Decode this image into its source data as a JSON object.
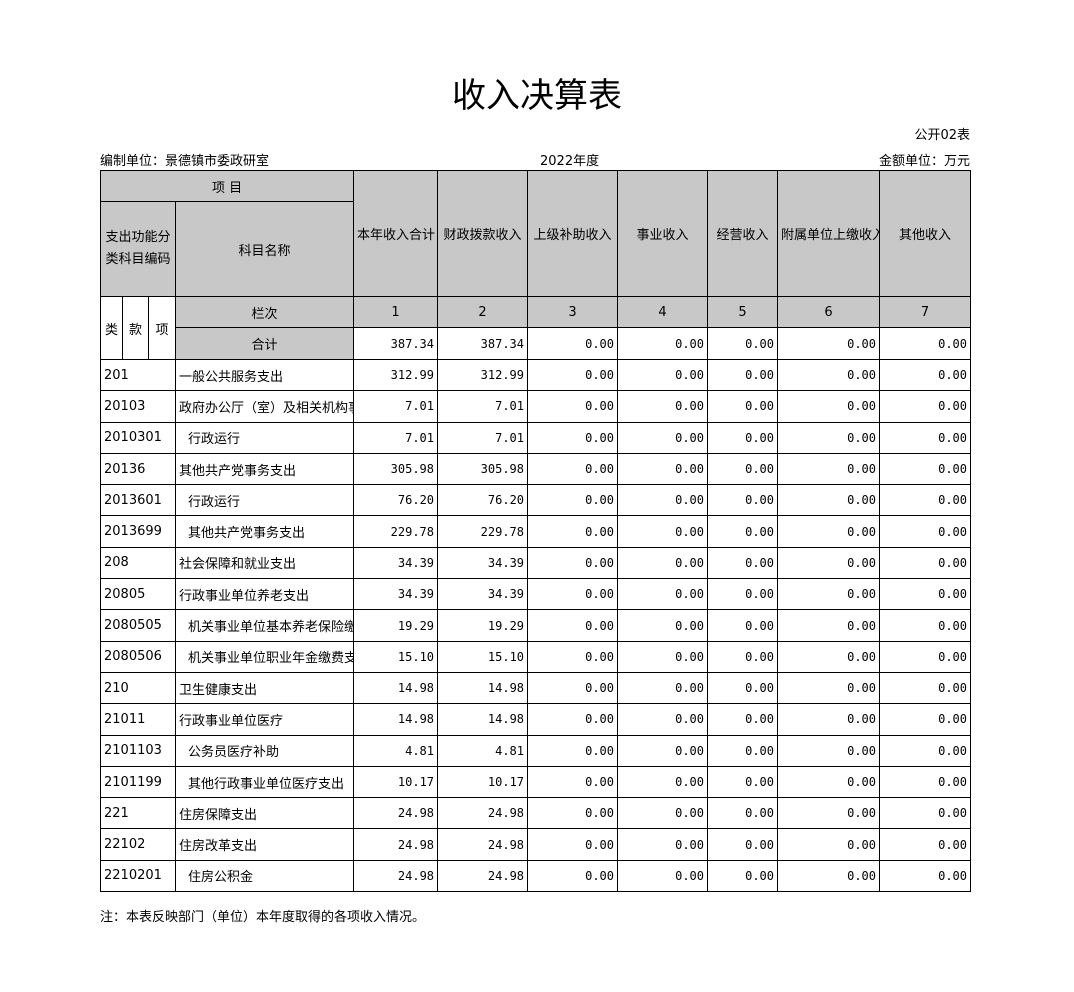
{
  "title": "收入决算表",
  "form_no": "公开02表",
  "unit": "编制单位：景德镇市委政研室",
  "year": "2022年度",
  "currency": "金额单位：万元",
  "table": {
    "header": {
      "item": "项 目",
      "code": "支出功能分类科目编码",
      "name": "科目名称",
      "columns": [
        "本年收入合计",
        "财政拨款收入",
        "上级补助收入",
        "事业收入",
        "经营收入",
        "附属单位上缴收入",
        "其他收入"
      ],
      "levels": [
        "类",
        "款",
        "项"
      ],
      "col_index_label": "栏次",
      "col_index": [
        "1",
        "2",
        "3",
        "4",
        "5",
        "6",
        "7"
      ]
    },
    "total": {
      "label": "合计",
      "values": [
        "387.34",
        "387.34",
        "0.00",
        "0.00",
        "0.00",
        "0.00",
        "0.00"
      ]
    },
    "rows": [
      [
        "201",
        "一般公共服务支出",
        "312.99",
        "312.99",
        "0.00",
        "0.00",
        "0.00",
        "0.00",
        "0.00"
      ],
      [
        "20103",
        "政府办公厅（室）及相关机构事务",
        "7.01",
        "7.01",
        "0.00",
        "0.00",
        "0.00",
        "0.00",
        "0.00"
      ],
      [
        "2010301",
        "行政运行",
        "7.01",
        "7.01",
        "0.00",
        "0.00",
        "0.00",
        "0.00",
        "0.00"
      ],
      [
        "20136",
        "其他共产党事务支出",
        "305.98",
        "305.98",
        "0.00",
        "0.00",
        "0.00",
        "0.00",
        "0.00"
      ],
      [
        "2013601",
        "行政运行",
        "76.20",
        "76.20",
        "0.00",
        "0.00",
        "0.00",
        "0.00",
        "0.00"
      ],
      [
        "2013699",
        "其他共产党事务支出",
        "229.78",
        "229.78",
        "0.00",
        "0.00",
        "0.00",
        "0.00",
        "0.00"
      ],
      [
        "208",
        "社会保障和就业支出",
        "34.39",
        "34.39",
        "0.00",
        "0.00",
        "0.00",
        "0.00",
        "0.00"
      ],
      [
        "20805",
        "行政事业单位养老支出",
        "34.39",
        "34.39",
        "0.00",
        "0.00",
        "0.00",
        "0.00",
        "0.00"
      ],
      [
        "2080505",
        "机关事业单位基本养老保险缴费支出",
        "19.29",
        "19.29",
        "0.00",
        "0.00",
        "0.00",
        "0.00",
        "0.00"
      ],
      [
        "2080506",
        "机关事业单位职业年金缴费支出",
        "15.10",
        "15.10",
        "0.00",
        "0.00",
        "0.00",
        "0.00",
        "0.00"
      ],
      [
        "210",
        "卫生健康支出",
        "14.98",
        "14.98",
        "0.00",
        "0.00",
        "0.00",
        "0.00",
        "0.00"
      ],
      [
        "21011",
        "行政事业单位医疗",
        "14.98",
        "14.98",
        "0.00",
        "0.00",
        "0.00",
        "0.00",
        "0.00"
      ],
      [
        "2101103",
        "公务员医疗补助",
        "4.81",
        "4.81",
        "0.00",
        "0.00",
        "0.00",
        "0.00",
        "0.00"
      ],
      [
        "2101199",
        "其他行政事业单位医疗支出",
        "10.17",
        "10.17",
        "0.00",
        "0.00",
        "0.00",
        "0.00",
        "0.00"
      ],
      [
        "221",
        "住房保障支出",
        "24.98",
        "24.98",
        "0.00",
        "0.00",
        "0.00",
        "0.00",
        "0.00"
      ],
      [
        "22102",
        "住房改革支出",
        "24.98",
        "24.98",
        "0.00",
        "0.00",
        "0.00",
        "0.00",
        "0.00"
      ],
      [
        "2210201",
        "住房公积金",
        "24.98",
        "24.98",
        "0.00",
        "0.00",
        "0.00",
        "0.00",
        "0.00"
      ]
    ]
  },
  "note": "注：本表反映部门（单位）本年度取得的各项收入情况。"
}
